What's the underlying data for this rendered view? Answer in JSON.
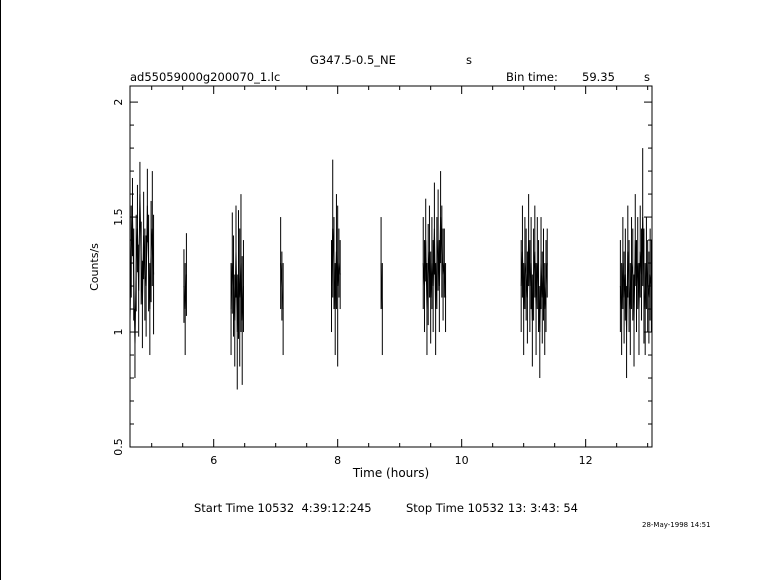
{
  "header": {
    "object_name": "G347.5-0.5_NE",
    "object_unit": "s",
    "file_name": "ad55059000g200070_1.lc",
    "bin_label": "Bin time:",
    "bin_value": "59.35",
    "bin_unit": "s"
  },
  "footer": {
    "start_time": "Start Time 10532  4:39:12:245",
    "stop_time": "Stop Time 10532 13: 3:43: 54",
    "date_stamp": "28-May-1998 14:51"
  },
  "chart_data": {
    "type": "line",
    "xlabel": "Time (hours)",
    "ylabel": "Counts/s",
    "xlim": [
      4.65,
      13.07
    ],
    "ylim": [
      0.5,
      2.07
    ],
    "xticks": [
      {
        "value": 6,
        "label": "6"
      },
      {
        "value": 8,
        "label": "8"
      },
      {
        "value": 10,
        "label": "10"
      },
      {
        "value": 12,
        "label": "12"
      }
    ],
    "yticks": [
      {
        "value": 0.5,
        "label": "0.5"
      },
      {
        "value": 1,
        "label": "1"
      },
      {
        "value": 1.5,
        "label": "1.5"
      },
      {
        "value": 2,
        "label": "2"
      }
    ],
    "segments": [
      {
        "x": [
          4.65,
          4.67,
          4.69,
          4.71,
          4.73,
          4.75,
          4.77,
          4.79,
          4.81,
          4.83,
          4.85,
          4.87,
          4.89,
          4.91,
          4.93,
          4.95,
          4.97,
          4.99,
          5.01,
          5.03
        ],
        "y": [
          1.05,
          1.35,
          1.5,
          1.25,
          0.95,
          1.3,
          1.45,
          1.18,
          1.6,
          1.3,
          1.12,
          1.42,
          1.25,
          1.2,
          1.55,
          1.3,
          1.1,
          1.35,
          1.45,
          1.25
        ],
        "err": [
          0.18,
          0.2,
          0.17,
          0.2,
          0.15,
          0.21,
          0.19,
          0.2,
          0.14,
          0.18,
          0.19,
          0.19,
          0.2,
          0.22,
          0.16,
          0.21,
          0.2,
          0.22,
          0.25,
          0.26
        ]
      },
      {
        "x": [
          5.52,
          5.54,
          5.56
        ],
        "y": [
          1.2,
          1.1,
          1.25
        ],
        "err": [
          0.16,
          0.2,
          0.18
        ]
      },
      {
        "x": [
          6.28,
          6.3,
          6.32,
          6.34,
          6.36,
          6.38,
          6.4,
          6.42,
          6.44,
          6.46,
          6.48
        ],
        "y": [
          1.1,
          1.3,
          1.2,
          1.05,
          1.35,
          1.0,
          1.25,
          1.15,
          1.3,
          1.05,
          1.2
        ],
        "err": [
          0.2,
          0.22,
          0.22,
          0.2,
          0.2,
          0.25,
          0.28,
          0.3,
          0.3,
          0.28,
          0.2
        ]
      },
      {
        "x": [
          7.08,
          7.1,
          7.12
        ],
        "y": [
          1.3,
          1.2,
          1.1
        ],
        "err": [
          0.2,
          0.15,
          0.2
        ]
      },
      {
        "x": [
          7.9,
          7.92,
          7.94,
          7.96,
          7.98,
          8.0,
          8.02,
          8.04
        ],
        "y": [
          1.2,
          1.45,
          1.3,
          1.1,
          1.35,
          1.2,
          1.3,
          1.25
        ],
        "err": [
          0.2,
          0.3,
          0.2,
          0.2,
          0.25,
          0.35,
          0.15,
          0.15
        ]
      },
      {
        "x": [
          8.7,
          8.72
        ],
        "y": [
          1.3,
          1.1
        ],
        "err": [
          0.2,
          0.2
        ]
      },
      {
        "x": [
          9.38,
          9.4,
          9.42,
          9.44,
          9.46,
          9.48,
          9.5,
          9.52,
          9.54,
          9.56,
          9.58,
          9.6,
          9.62,
          9.64,
          9.66,
          9.68,
          9.7,
          9.72,
          9.74
        ],
        "y": [
          1.3,
          1.2,
          1.4,
          1.1,
          1.25,
          1.35,
          1.15,
          1.3,
          1.2,
          1.45,
          1.1,
          1.3,
          1.4,
          1.2,
          1.5,
          1.35,
          1.25,
          1.3,
          1.15
        ],
        "err": [
          0.2,
          0.2,
          0.18,
          0.2,
          0.22,
          0.2,
          0.2,
          0.2,
          0.2,
          0.2,
          0.2,
          0.2,
          0.22,
          0.2,
          0.2,
          0.2,
          0.2,
          0.15,
          0.15
        ]
      },
      {
        "x": [
          10.96,
          10.98,
          11.0,
          11.02,
          11.04,
          11.06,
          11.08,
          11.1,
          11.12,
          11.14,
          11.16,
          11.18,
          11.2,
          11.22,
          11.24,
          11.26,
          11.28,
          11.3,
          11.32,
          11.34,
          11.36,
          11.38
        ],
        "y": [
          1.2,
          1.35,
          1.1,
          1.3,
          1.25,
          1.15,
          1.4,
          1.2,
          1.3,
          1.05,
          1.25,
          1.35,
          1.1,
          1.3,
          1.2,
          1.0,
          1.3,
          1.15,
          1.25,
          1.1,
          1.2,
          1.3
        ],
        "err": [
          0.2,
          0.2,
          0.2,
          0.2,
          0.2,
          0.2,
          0.2,
          0.2,
          0.2,
          0.2,
          0.2,
          0.2,
          0.2,
          0.2,
          0.2,
          0.2,
          0.2,
          0.2,
          0.2,
          0.2,
          0.2,
          0.15
        ]
      },
      {
        "x": [
          12.56,
          12.58,
          12.6,
          12.62,
          12.64,
          12.66,
          12.68,
          12.7,
          12.72,
          12.74,
          12.76,
          12.78,
          12.8,
          12.82,
          12.84,
          12.86,
          12.88,
          12.9,
          12.92,
          12.94,
          12.96,
          12.98,
          13.0,
          13.02,
          13.04,
          13.06
        ],
        "y": [
          1.2,
          1.1,
          1.3,
          1.15,
          1.25,
          1.0,
          1.35,
          1.2,
          1.1,
          1.3,
          1.25,
          1.05,
          1.4,
          1.2,
          1.3,
          1.1,
          1.35,
          1.25,
          1.5,
          1.2,
          1.1,
          1.3,
          1.2,
          1.15,
          1.25,
          1.2
        ],
        "err": [
          0.2,
          0.2,
          0.2,
          0.2,
          0.2,
          0.2,
          0.2,
          0.2,
          0.2,
          0.2,
          0.2,
          0.2,
          0.2,
          0.2,
          0.2,
          0.2,
          0.2,
          0.2,
          0.3,
          0.25,
          0.2,
          0.2,
          0.2,
          0.2,
          0.2,
          0.2
        ]
      }
    ]
  }
}
